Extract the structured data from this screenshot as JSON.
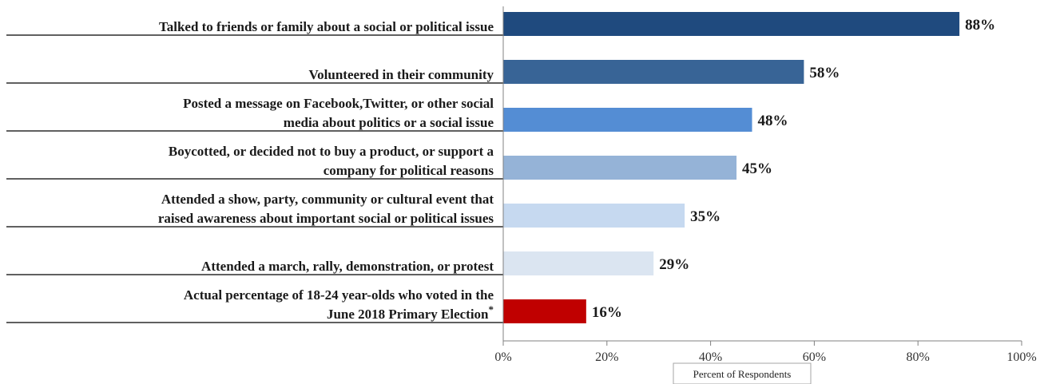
{
  "chart_data": {
    "type": "bar",
    "orientation": "horizontal",
    "categories": [
      [
        "Talked to friends or family about a social or political issue"
      ],
      [
        "Volunteered in their community"
      ],
      [
        "Posted a message on Facebook,Twitter, or other social",
        "media about politics or a social issue"
      ],
      [
        "Boycotted, or decided not to buy a product, or support a",
        "company for political reasons"
      ],
      [
        "Attended a show, party, community or cultural event that",
        "raised awareness about important social or political issues"
      ],
      [
        "Attended a march, rally, demonstration, or protest"
      ],
      [
        "Actual percentage of 18-24 year-olds who voted in the",
        "June 2018 Primary Election"
      ]
    ],
    "footnote_mark": "*",
    "values": [
      88,
      58,
      48,
      45,
      35,
      29,
      16
    ],
    "value_labels": [
      "88%",
      "58%",
      "48%",
      "45%",
      "35%",
      "29%",
      "16%"
    ],
    "bar_colors": [
      "#1f4a7e",
      "#386496",
      "#548dd4",
      "#95b3d7",
      "#c6d9f0",
      "#dbe5f1",
      "#c00000"
    ],
    "xlabel": "Percent of Respondents",
    "xlim": [
      0,
      100
    ],
    "xticks": [
      "0%",
      "20%",
      "40%",
      "60%",
      "80%",
      "100%"
    ],
    "grid": false,
    "legend": "none"
  }
}
